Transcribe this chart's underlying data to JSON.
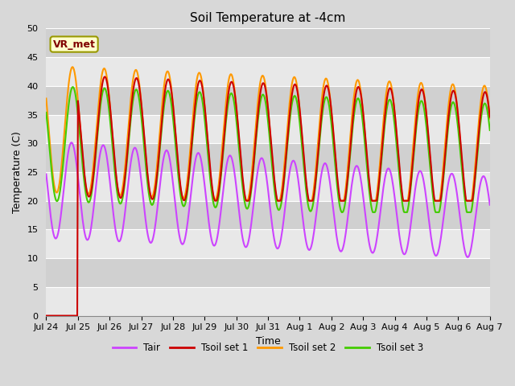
{
  "title": "Soil Temperature at -4cm",
  "xlabel": "Time",
  "ylabel": "Temperature (C)",
  "ylim": [
    0,
    50
  ],
  "n_days": 14,
  "background_color": "#d8d8d8",
  "plot_bg_color": "#d8d8d8",
  "grid_color": "#ffffff",
  "colors": {
    "Tair": "#cc44ff",
    "Tsoil1": "#cc0000",
    "Tsoil2": "#ff9900",
    "Tsoil3": "#44cc00"
  },
  "legend_labels": [
    "Tair",
    "Tsoil set 1",
    "Tsoil set 2",
    "Tsoil set 3"
  ],
  "xtick_labels": [
    "Jul 24",
    "Jul 25",
    "Jul 26",
    "Jul 27",
    "Jul 28",
    "Jul 29",
    "Jul 30",
    "Jul 31",
    "Aug 1",
    "Aug 2",
    "Aug 3",
    "Aug 4",
    "Aug 5",
    "Aug 6",
    "Aug 7"
  ],
  "annotation_text": "VR_met",
  "annotation_color": "#800000",
  "annotation_bg": "#ffffcc",
  "annotation_edge": "#999900"
}
